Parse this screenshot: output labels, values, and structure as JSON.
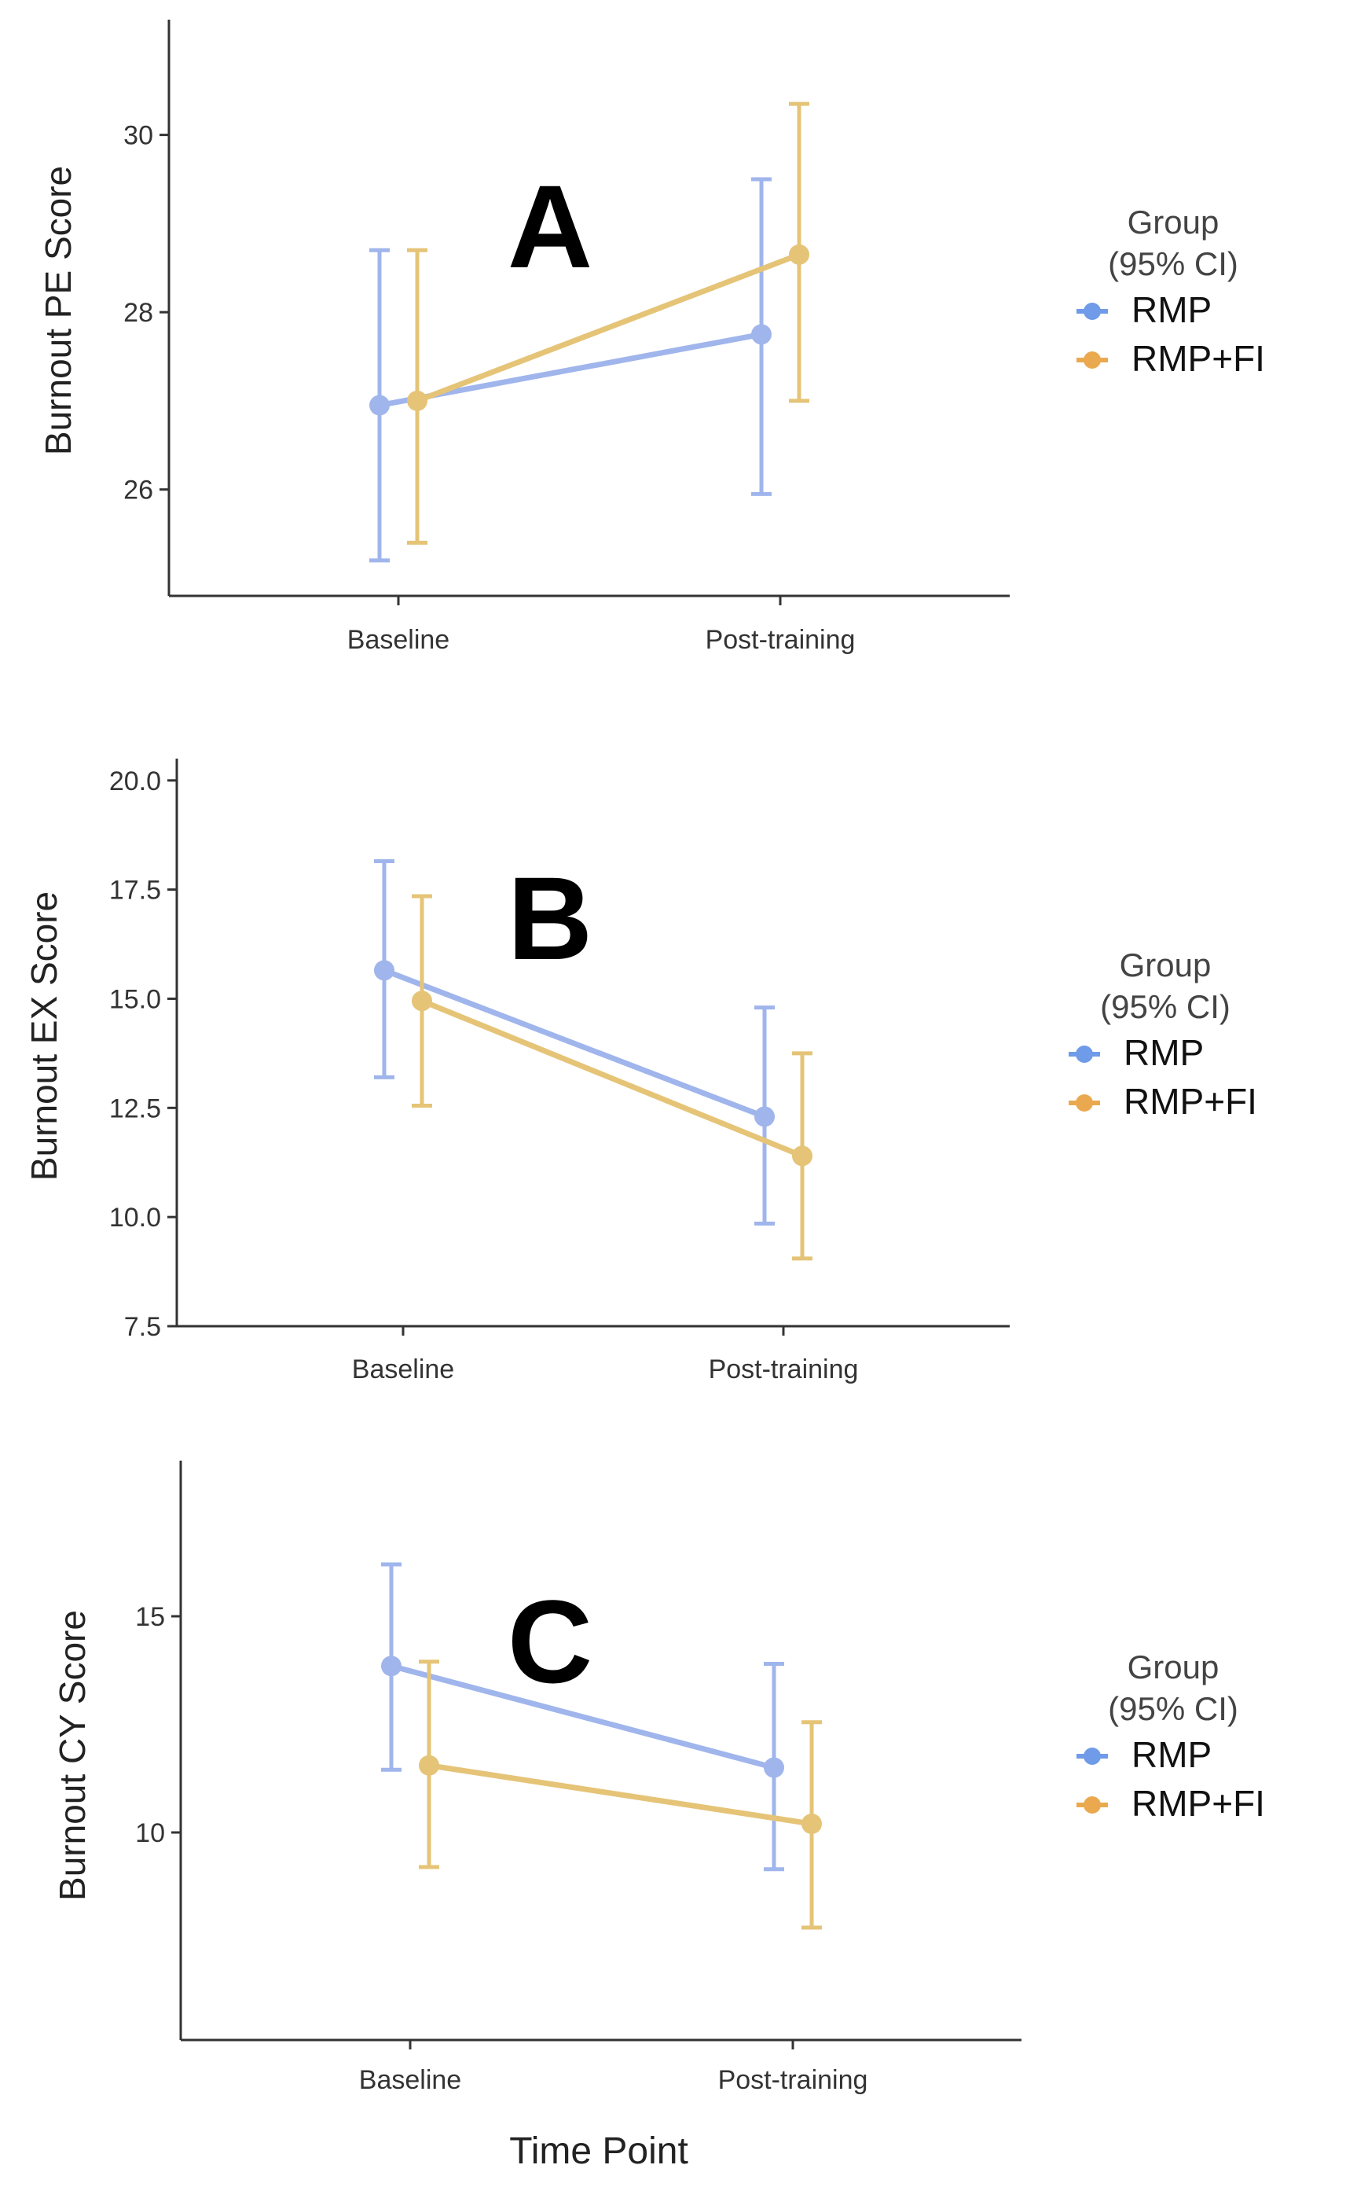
{
  "colors": {
    "rmp": "#9fb5ec",
    "rmp_fi": "#e5c477",
    "axis": "#333333"
  },
  "legend": {
    "title_line1": "Group",
    "title_line2": "(95% CI)",
    "entries": [
      "RMP",
      "RMP+FI"
    ],
    "marker_colors": [
      "#6f9be8",
      "#eaa94f"
    ]
  },
  "xlabel": "Time Point",
  "chart_data": [
    {
      "type": "line",
      "panel": "A",
      "ylabel": "Burnout PE Score",
      "categories": [
        "Baseline",
        "Post-training"
      ],
      "ylim": [
        24.8,
        31.3
      ],
      "yticks": [
        26,
        28,
        30
      ],
      "ytick_labels": [
        "26",
        "28",
        "30"
      ],
      "series": [
        {
          "name": "RMP",
          "values": [
            26.95,
            27.75
          ],
          "ci_low": [
            25.2,
            25.95
          ],
          "ci_high": [
            28.7,
            29.5
          ]
        },
        {
          "name": "RMP+FI",
          "values": [
            27.0,
            28.65
          ],
          "ci_low": [
            25.4,
            27.0
          ],
          "ci_high": [
            28.7,
            30.35
          ]
        }
      ]
    },
    {
      "type": "line",
      "panel": "B",
      "ylabel": "Burnout EX Score",
      "categories": [
        "Baseline",
        "Post-training"
      ],
      "ylim": [
        7.5,
        20.5
      ],
      "yticks": [
        7.5,
        10.0,
        12.5,
        15.0,
        17.5,
        20.0
      ],
      "ytick_labels": [
        "7.5",
        "10.0",
        "12.5",
        "15.0",
        "17.5",
        "20.0"
      ],
      "series": [
        {
          "name": "RMP",
          "values": [
            15.65,
            12.3
          ],
          "ci_low": [
            13.2,
            9.85
          ],
          "ci_high": [
            18.15,
            14.8
          ]
        },
        {
          "name": "RMP+FI",
          "values": [
            14.95,
            11.4
          ],
          "ci_low": [
            12.55,
            9.05
          ],
          "ci_high": [
            17.35,
            13.75
          ]
        }
      ]
    },
    {
      "type": "line",
      "panel": "C",
      "ylabel": "Burnout CY Score",
      "categories": [
        "Baseline",
        "Post-training"
      ],
      "ylim": [
        5.2,
        18.6
      ],
      "yticks": [
        10,
        15
      ],
      "ytick_labels": [
        "10",
        "15"
      ],
      "series": [
        {
          "name": "RMP",
          "values": [
            13.85,
            11.5
          ],
          "ci_low": [
            11.45,
            9.15
          ],
          "ci_high": [
            16.2,
            13.9
          ]
        },
        {
          "name": "RMP+FI",
          "values": [
            11.55,
            10.2
          ],
          "ci_low": [
            9.2,
            7.8
          ],
          "ci_high": [
            13.95,
            12.55
          ]
        }
      ]
    }
  ]
}
